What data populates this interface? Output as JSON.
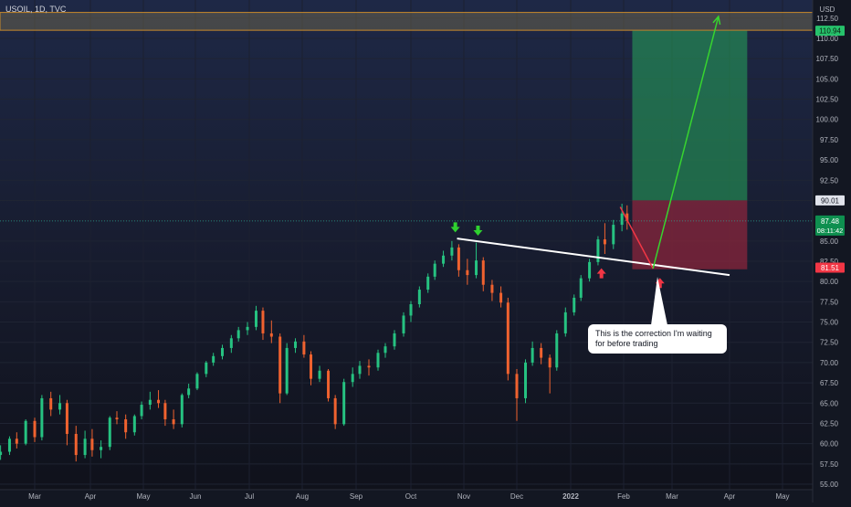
{
  "header": {
    "symbol": "USOIL, 1D, TVC",
    "currency": "USD"
  },
  "annotations": {
    "callout": "This is the correction I'm waiting for before trading"
  },
  "chart_data": {
    "type": "candlestick",
    "symbol": "USOIL",
    "interval": "1D",
    "exchange": "TVC",
    "currency": "USD",
    "grid": true,
    "ylim": [
      55,
      113
    ],
    "y_ticks": [
      "112.50",
      "110.00",
      "107.50",
      "105.00",
      "102.50",
      "100.00",
      "97.50",
      "95.00",
      "92.50",
      "90.00",
      "87.50",
      "85.00",
      "82.50",
      "80.00",
      "77.50",
      "75.00",
      "72.50",
      "70.00",
      "67.50",
      "65.00",
      "62.50",
      "60.00",
      "57.50",
      "55.00"
    ],
    "x_ticks": [
      "Mar",
      "Apr",
      "May",
      "Jun",
      "Jul",
      "Aug",
      "Sep",
      "Oct",
      "Nov",
      "Dec",
      "2022",
      "Feb",
      "Mar",
      "Apr",
      "May"
    ],
    "price_labels": {
      "take_profit": "110.94",
      "entry": "90.01",
      "last_price": "87.48",
      "countdown": "08:11:42",
      "stop_loss": "81.51"
    },
    "position": {
      "take_profit": 110.94,
      "entry": 90.01,
      "stop_loss": 81.51,
      "start": "2022-02-06",
      "end": "2022-04-11"
    },
    "resistance_zone": {
      "from": 111.0,
      "to": 113.2
    },
    "last_price_line": 87.48,
    "trendline": [
      {
        "date": "2021-10-28",
        "price": 85.3
      },
      {
        "date": "2022-04-01",
        "price": 80.8
      }
    ],
    "projection": [
      {
        "date": "2022-01-30",
        "price": 89.2
      },
      {
        "date": "2022-02-18",
        "price": 81.6
      },
      {
        "date": "2022-03-26",
        "price": 112.7
      }
    ],
    "markers": [
      {
        "date": "2021-10-27",
        "price": 86.4,
        "dir": "down"
      },
      {
        "date": "2021-11-09",
        "price": 86.0,
        "dir": "down"
      },
      {
        "date": "2022-01-19",
        "price": 81.3,
        "dir": "up"
      },
      {
        "date": "2022-02-22",
        "price": 80.1,
        "dir": "up"
      }
    ],
    "candles": [
      [
        "2021-02-01",
        56.0,
        57.8,
        55.6,
        57.5
      ],
      [
        "2021-02-05",
        57.5,
        59.0,
        57.0,
        58.6
      ],
      [
        "2021-02-10",
        58.6,
        59.8,
        58.0,
        59.0
      ],
      [
        "2021-02-15",
        59.0,
        60.9,
        58.6,
        60.6
      ],
      [
        "2021-02-19",
        60.6,
        61.4,
        59.4,
        60.0
      ],
      [
        "2021-02-24",
        60.0,
        63.0,
        59.8,
        62.8
      ],
      [
        "2021-03-01",
        62.8,
        63.2,
        60.2,
        60.8
      ],
      [
        "2021-03-05",
        60.8,
        66.0,
        60.4,
        65.6
      ],
      [
        "2021-03-10",
        65.6,
        66.4,
        63.4,
        64.2
      ],
      [
        "2021-03-15",
        64.2,
        66.0,
        63.6,
        65.0
      ],
      [
        "2021-03-19",
        65.0,
        65.4,
        59.8,
        61.2
      ],
      [
        "2021-03-24",
        61.2,
        62.2,
        57.8,
        58.6
      ],
      [
        "2021-03-29",
        58.6,
        61.6,
        58.2,
        60.6
      ],
      [
        "2021-04-02",
        60.6,
        61.8,
        58.4,
        59.2
      ],
      [
        "2021-04-07",
        59.2,
        60.4,
        58.2,
        59.6
      ],
      [
        "2021-04-12",
        59.6,
        63.4,
        59.2,
        63.2
      ],
      [
        "2021-04-16",
        63.2,
        64.0,
        62.4,
        63.0
      ],
      [
        "2021-04-21",
        63.0,
        63.6,
        60.6,
        61.4
      ],
      [
        "2021-04-26",
        61.4,
        63.6,
        61.0,
        63.4
      ],
      [
        "2021-04-30",
        63.4,
        65.2,
        63.0,
        64.8
      ],
      [
        "2021-05-05",
        64.8,
        66.4,
        64.2,
        65.4
      ],
      [
        "2021-05-10",
        65.4,
        66.6,
        64.4,
        65.0
      ],
      [
        "2021-05-14",
        65.0,
        65.4,
        62.2,
        63.0
      ],
      [
        "2021-05-19",
        63.0,
        64.2,
        61.8,
        62.4
      ],
      [
        "2021-05-24",
        62.4,
        66.2,
        62.0,
        66.0
      ],
      [
        "2021-05-28",
        66.0,
        67.4,
        65.6,
        66.8
      ],
      [
        "2021-06-02",
        66.8,
        68.8,
        66.6,
        68.6
      ],
      [
        "2021-06-07",
        68.6,
        70.2,
        68.2,
        70.0
      ],
      [
        "2021-06-11",
        70.0,
        71.2,
        69.6,
        70.8
      ],
      [
        "2021-06-16",
        70.8,
        72.2,
        70.4,
        71.8
      ],
      [
        "2021-06-21",
        71.8,
        73.4,
        71.2,
        73.0
      ],
      [
        "2021-06-25",
        73.0,
        74.4,
        72.6,
        74.0
      ],
      [
        "2021-06-30",
        74.0,
        75.0,
        73.4,
        74.4
      ],
      [
        "2021-07-05",
        74.4,
        77.0,
        74.0,
        76.4
      ],
      [
        "2021-07-09",
        76.4,
        76.8,
        72.8,
        73.6
      ],
      [
        "2021-07-14",
        73.6,
        75.2,
        72.4,
        73.2
      ],
      [
        "2021-07-19",
        73.2,
        73.6,
        65.0,
        66.2
      ],
      [
        "2021-07-23",
        66.2,
        72.4,
        66.0,
        71.8
      ],
      [
        "2021-07-28",
        71.8,
        73.0,
        71.2,
        72.6
      ],
      [
        "2021-08-02",
        72.6,
        73.4,
        70.6,
        71.0
      ],
      [
        "2021-08-06",
        71.0,
        71.4,
        67.2,
        68.0
      ],
      [
        "2021-08-11",
        68.0,
        69.6,
        67.6,
        69.0
      ],
      [
        "2021-08-16",
        69.0,
        69.2,
        65.2,
        65.6
      ],
      [
        "2021-08-20",
        65.6,
        66.0,
        61.8,
        62.4
      ],
      [
        "2021-08-25",
        62.4,
        68.0,
        62.2,
        67.6
      ],
      [
        "2021-08-30",
        67.6,
        69.4,
        67.0,
        68.6
      ],
      [
        "2021-09-03",
        68.6,
        70.2,
        68.0,
        69.6
      ],
      [
        "2021-09-08",
        69.6,
        70.4,
        68.4,
        69.4
      ],
      [
        "2021-09-13",
        69.4,
        71.6,
        69.0,
        71.2
      ],
      [
        "2021-09-17",
        71.2,
        72.4,
        70.6,
        72.0
      ],
      [
        "2021-09-22",
        72.0,
        74.0,
        71.6,
        73.6
      ],
      [
        "2021-09-27",
        73.6,
        76.2,
        73.2,
        75.8
      ],
      [
        "2021-10-01",
        75.8,
        77.6,
        75.0,
        77.2
      ],
      [
        "2021-10-06",
        77.2,
        79.4,
        76.8,
        79.0
      ],
      [
        "2021-10-11",
        79.0,
        81.0,
        78.6,
        80.6
      ],
      [
        "2021-10-15",
        80.6,
        82.6,
        80.2,
        82.2
      ],
      [
        "2021-10-20",
        82.2,
        83.8,
        81.8,
        83.2
      ],
      [
        "2021-10-25",
        83.2,
        85.0,
        82.6,
        84.2
      ],
      [
        "2021-10-29",
        84.2,
        84.6,
        80.6,
        81.4
      ],
      [
        "2021-11-03",
        81.4,
        82.8,
        79.6,
        80.8
      ],
      [
        "2021-11-08",
        80.8,
        84.8,
        80.4,
        82.6
      ],
      [
        "2021-11-12",
        82.6,
        83.0,
        78.8,
        79.6
      ],
      [
        "2021-11-17",
        79.6,
        80.2,
        77.6,
        78.6
      ],
      [
        "2021-11-22",
        78.6,
        79.4,
        76.8,
        77.4
      ],
      [
        "2021-11-26",
        77.4,
        78.0,
        67.8,
        68.6
      ],
      [
        "2021-12-01",
        68.6,
        69.2,
        62.8,
        65.6
      ],
      [
        "2021-12-06",
        65.6,
        70.4,
        65.0,
        70.0
      ],
      [
        "2021-12-10",
        70.0,
        72.6,
        69.6,
        71.8
      ],
      [
        "2021-12-15",
        71.8,
        72.4,
        69.8,
        70.6
      ],
      [
        "2021-12-20",
        70.6,
        71.0,
        66.2,
        69.4
      ],
      [
        "2021-12-24",
        69.4,
        74.0,
        69.0,
        73.6
      ],
      [
        "2021-12-29",
        73.6,
        76.8,
        73.2,
        76.2
      ],
      [
        "2022-01-03",
        76.2,
        78.4,
        75.8,
        78.0
      ],
      [
        "2022-01-07",
        78.0,
        80.8,
        77.6,
        80.4
      ],
      [
        "2022-01-12",
        80.4,
        82.8,
        80.0,
        82.4
      ],
      [
        "2022-01-17",
        82.4,
        85.6,
        82.0,
        85.2
      ],
      [
        "2022-01-21",
        85.2,
        87.2,
        83.4,
        84.6
      ],
      [
        "2022-01-26",
        84.6,
        87.6,
        84.0,
        87.0
      ],
      [
        "2022-01-31",
        87.0,
        89.6,
        86.2,
        88.4
      ],
      [
        "2022-02-03",
        88.4,
        89.4,
        86.4,
        87.48
      ]
    ]
  }
}
